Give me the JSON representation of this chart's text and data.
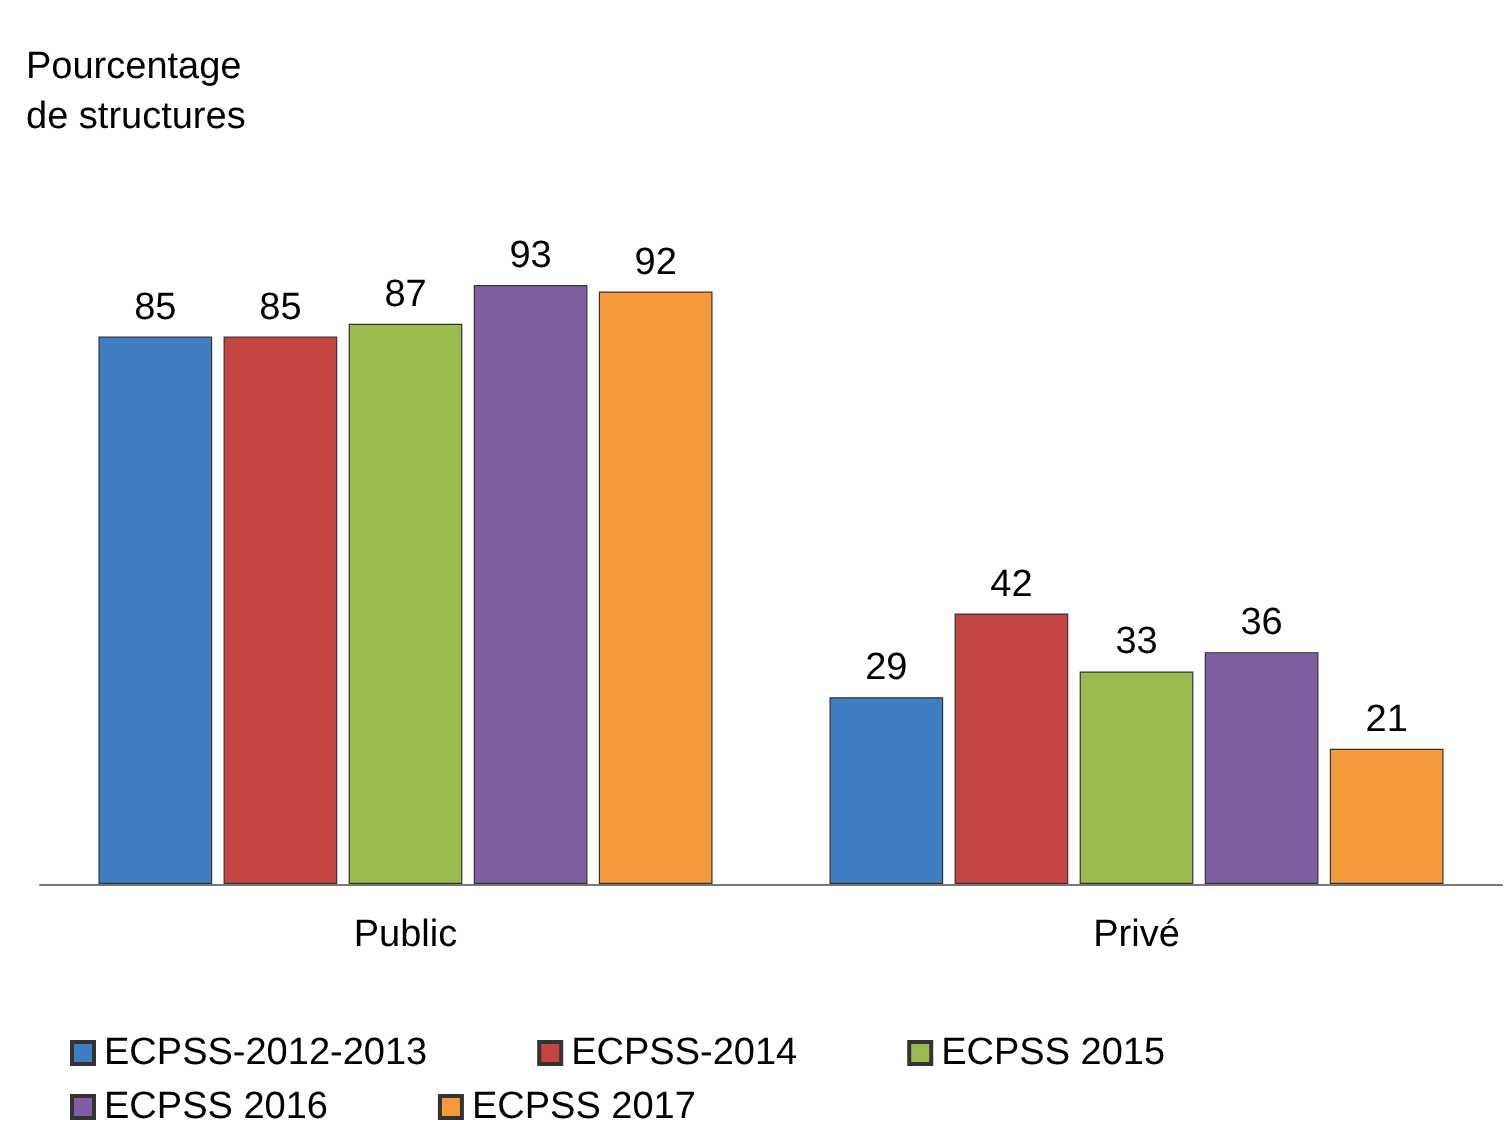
{
  "chart_data": {
    "type": "bar",
    "ylabel": "Pourcentage\nde structures",
    "categories": [
      "Public",
      "Privé"
    ],
    "series": [
      {
        "name": "ECPSS-2012-2013",
        "color": "#3f7fc1",
        "values": [
          85,
          29
        ]
      },
      {
        "name": "ECPSS-2014",
        "color": "#c44441",
        "values": [
          85,
          42
        ]
      },
      {
        "name": "ECPSS 2015",
        "color": "#9bbb50",
        "values": [
          87,
          33
        ]
      },
      {
        "name": "ECPSS 2016",
        "color": "#7f5fa1",
        "values": [
          93,
          36
        ]
      },
      {
        "name": "ECPSS 2017",
        "color": "#f59a3c",
        "values": [
          92,
          21
        ]
      }
    ],
    "data_labels": true,
    "legend": "bottom"
  }
}
